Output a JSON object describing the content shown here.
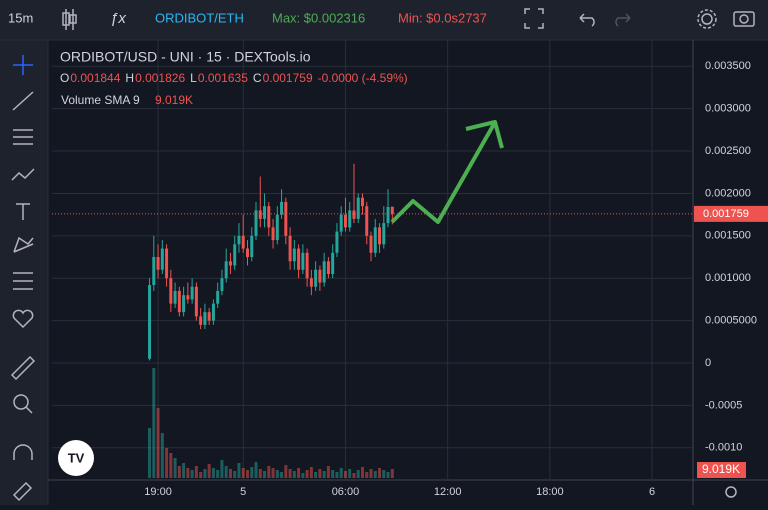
{
  "toolbar": {
    "interval": "15m",
    "pair": "ORDIBOT/ETH",
    "max": "Max: $0.002316",
    "min": "Min: $0.0s2737"
  },
  "chart_data": {
    "type": "candlestick",
    "legend": {
      "title": "ORDIBOT/USD - UNI · 15 · DEXTools.io",
      "ohlc_labels": [
        "O",
        "H",
        "L",
        "C"
      ],
      "change": "-0.0000 (-4.59%)",
      "volume_title": "Volume SMA 9",
      "volume_sma_label": "9.019K"
    },
    "x": [
      -2,
      -1,
      0,
      1,
      2,
      3,
      4,
      5,
      6,
      7,
      8,
      9,
      10,
      11,
      12,
      13,
      14,
      15,
      16,
      17,
      18,
      19,
      20,
      21,
      22,
      23,
      24,
      25,
      26,
      27,
      28,
      29,
      30,
      31,
      32,
      33,
      34,
      35,
      36,
      37,
      38,
      39,
      40,
      41,
      42,
      43,
      44,
      45,
      46,
      47,
      48,
      49,
      50,
      51,
      52,
      53,
      54,
      55
    ],
    "open": [
      5e-05,
      0.00092,
      0.00125,
      0.0011,
      0.00135,
      0.001,
      0.0007,
      0.00085,
      0.0006,
      0.0008,
      0.00075,
      0.0009,
      0.00055,
      0.00045,
      0.0006,
      0.0005,
      0.0007,
      0.00085,
      0.001,
      0.0012,
      0.00115,
      0.0014,
      0.0015,
      0.00135,
      0.00125,
      0.0015,
      0.0018,
      0.0017,
      0.00185,
      0.0016,
      0.00145,
      0.00175,
      0.0019,
      0.0015,
      0.0012,
      0.00135,
      0.0011,
      0.0013,
      0.001,
      0.0009,
      0.0011,
      0.00095,
      0.0012,
      0.00105,
      0.0013,
      0.00155,
      0.00175,
      0.0016,
      0.0018,
      0.0017,
      0.00195,
      0.00185,
      0.0015,
      0.0013,
      0.0016,
      0.0014,
      0.00165,
      0.001844
    ],
    "high": [
      0.001,
      0.0015,
      0.0014,
      0.00145,
      0.0014,
      0.0011,
      0.00095,
      0.0009,
      0.0009,
      0.00095,
      0.001,
      0.00095,
      0.00065,
      0.0007,
      0.00065,
      0.00075,
      0.00095,
      0.0011,
      0.00135,
      0.0013,
      0.0015,
      0.00165,
      0.00175,
      0.00145,
      0.0016,
      0.0019,
      0.0022,
      0.002,
      0.0019,
      0.0017,
      0.00185,
      0.00205,
      0.00195,
      0.0016,
      0.00145,
      0.0014,
      0.0014,
      0.00135,
      0.0011,
      0.0012,
      0.00115,
      0.0013,
      0.00125,
      0.0014,
      0.00165,
      0.00185,
      0.00195,
      0.0019,
      0.00235,
      0.002,
      0.002,
      0.0019,
      0.00155,
      0.0017,
      0.00165,
      0.00185,
      0.00205,
      0.001826
    ],
    "low": [
      3e-05,
      0.00085,
      0.001,
      0.00105,
      0.0009,
      0.0006,
      0.00065,
      0.00055,
      0.00055,
      0.0007,
      0.0007,
      0.0005,
      0.0004,
      0.0004,
      0.00045,
      0.00045,
      0.00065,
      0.0008,
      0.00095,
      0.00105,
      0.0011,
      0.0013,
      0.0013,
      0.00115,
      0.0012,
      0.00145,
      0.0016,
      0.0016,
      0.0015,
      0.00135,
      0.0014,
      0.0017,
      0.0014,
      0.0011,
      0.0011,
      0.001,
      0.00105,
      0.0009,
      0.0008,
      0.00085,
      0.00085,
      0.0009,
      0.001,
      0.001,
      0.00125,
      0.0015,
      0.00155,
      0.00155,
      0.00165,
      0.00165,
      0.00175,
      0.0014,
      0.0012,
      0.00125,
      0.0013,
      0.00135,
      0.0016,
      0.001635
    ],
    "close": [
      0.00092,
      0.00125,
      0.0011,
      0.00135,
      0.001,
      0.0007,
      0.00085,
      0.0006,
      0.0008,
      0.00075,
      0.0009,
      0.00055,
      0.00045,
      0.0006,
      0.0005,
      0.0007,
      0.00085,
      0.001,
      0.0012,
      0.00115,
      0.0014,
      0.0015,
      0.00135,
      0.00125,
      0.0015,
      0.0018,
      0.0017,
      0.00185,
      0.0016,
      0.00145,
      0.00175,
      0.0019,
      0.0015,
      0.0012,
      0.00135,
      0.0011,
      0.0013,
      0.001,
      0.0009,
      0.0011,
      0.00095,
      0.0012,
      0.00105,
      0.0013,
      0.00155,
      0.00175,
      0.0016,
      0.0018,
      0.0017,
      0.00195,
      0.00185,
      0.0015,
      0.0013,
      0.0016,
      0.0014,
      0.00165,
      0.00184,
      0.001759
    ],
    "volume": [
      50,
      110,
      70,
      45,
      30,
      25,
      20,
      12,
      15,
      10,
      8,
      12,
      6,
      9,
      14,
      10,
      8,
      18,
      12,
      9,
      7,
      15,
      10,
      8,
      11,
      16,
      9,
      7,
      12,
      10,
      8,
      6,
      13,
      9,
      7,
      10,
      5,
      8,
      11,
      6,
      9,
      7,
      12,
      8,
      6,
      10,
      7,
      9,
      5,
      8,
      11,
      6,
      9,
      7,
      10,
      8,
      6,
      9
    ],
    "up_color": "#26a69a",
    "down_color": "#ef5350",
    "xlim": [
      -24.9,
      125.6
    ],
    "xticks": [
      {
        "value": 0,
        "label": "19:00"
      },
      {
        "value": 20,
        "label": "5"
      },
      {
        "value": 44,
        "label": "06:00"
      },
      {
        "value": 68,
        "label": "12:00"
      },
      {
        "value": 92,
        "label": "18:00"
      },
      {
        "value": 116,
        "label": "6"
      }
    ],
    "ylim": [
      -0.00138,
      0.00381
    ],
    "yticks": [
      {
        "value": 0.0035,
        "label": "0.003500"
      },
      {
        "value": 0.003,
        "label": "0.003000"
      },
      {
        "value": 0.0025,
        "label": "0.002500"
      },
      {
        "value": 0.002,
        "label": "0.002000"
      },
      {
        "value": 0.0015,
        "label": "0.001500"
      },
      {
        "value": 0.001,
        "label": "0.001000"
      },
      {
        "value": 0.0005,
        "label": "0.0005000"
      },
      0,
      -0.0005,
      {
        "value": -0.001,
        "label": "-0.0010"
      }
    ],
    "grid": true
  }
}
